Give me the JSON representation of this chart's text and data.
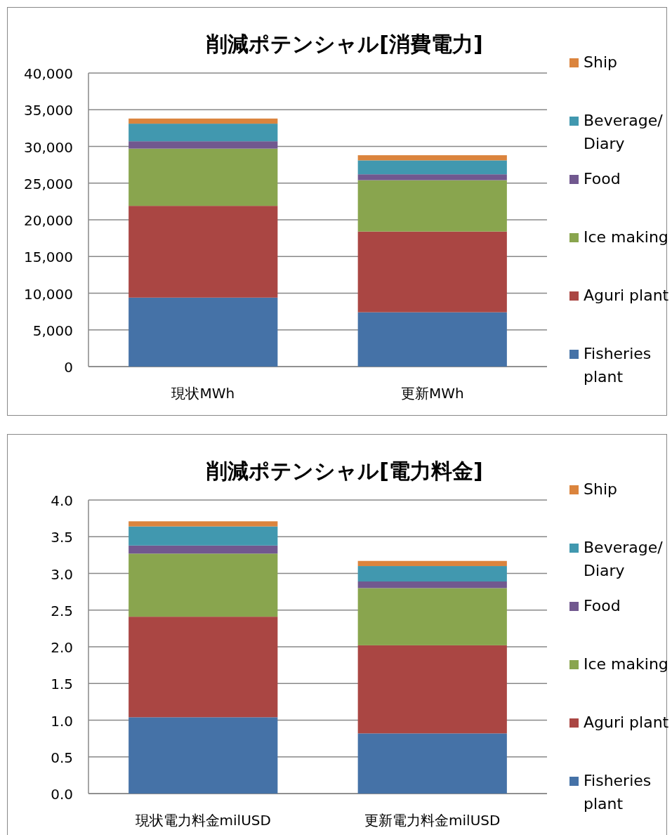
{
  "chart_data": [
    {
      "type": "bar",
      "title": "削減ポテンシャル[消費電力]",
      "categories": [
        "現状MWh",
        "更新MWh"
      ],
      "stacked": true,
      "legend": "right",
      "grid": "y",
      "ylim": [
        0,
        40000
      ],
      "yticks": [
        {
          "value": 0,
          "label": "0"
        },
        {
          "value": 5000,
          "label": "5,000"
        },
        {
          "value": 10000,
          "label": "10,000"
        },
        {
          "value": 15000,
          "label": "15,000"
        },
        {
          "value": 20000,
          "label": "20,000"
        },
        {
          "value": 25000,
          "label": "25,000"
        },
        {
          "value": 30000,
          "label": "30,000"
        },
        {
          "value": 35000,
          "label": "35,000"
        },
        {
          "value": 40000,
          "label": "40,000"
        }
      ],
      "series": [
        {
          "name": "Fisheries plant",
          "color": "#4572a7",
          "values": [
            9400,
            7400
          ]
        },
        {
          "name": "Aguri plant",
          "color": "#aa4643",
          "values": [
            12500,
            11000
          ]
        },
        {
          "name": "Ice making",
          "color": "#89a54e",
          "values": [
            7800,
            7000
          ]
        },
        {
          "name": "Food",
          "color": "#71588f",
          "values": [
            1000,
            800
          ]
        },
        {
          "name": "Beverage/ Diary",
          "color": "#4198af",
          "values": [
            2400,
            1900
          ]
        },
        {
          "name": "Ship",
          "color": "#db843d",
          "values": [
            700,
            700
          ]
        }
      ]
    },
    {
      "type": "bar",
      "title": "削減ポテンシャル[電力料金]",
      "categories": [
        "現状電力料金milUSD",
        "更新電力料金milUSD"
      ],
      "stacked": true,
      "legend": "right",
      "grid": "y",
      "ylim": [
        0,
        4.0
      ],
      "yticks": [
        {
          "value": 0,
          "label": "0.0"
        },
        {
          "value": 0.5,
          "label": "0.5"
        },
        {
          "value": 1,
          "label": "1.0"
        },
        {
          "value": 1.5,
          "label": "1.5"
        },
        {
          "value": 2,
          "label": "2.0"
        },
        {
          "value": 2.5,
          "label": "2.5"
        },
        {
          "value": 3,
          "label": "3.0"
        },
        {
          "value": 3.5,
          "label": "3.5"
        },
        {
          "value": 4,
          "label": "4.0"
        }
      ],
      "series": [
        {
          "name": "Fisheries plant",
          "color": "#4572a7",
          "values": [
            1.04,
            0.82
          ]
        },
        {
          "name": "Aguri plant",
          "color": "#aa4643",
          "values": [
            1.37,
            1.2
          ]
        },
        {
          "name": "Ice making",
          "color": "#89a54e",
          "values": [
            0.86,
            0.78
          ]
        },
        {
          "name": "Food",
          "color": "#71588f",
          "values": [
            0.11,
            0.09
          ]
        },
        {
          "name": "Beverage/ Diary",
          "color": "#4198af",
          "values": [
            0.26,
            0.21
          ]
        },
        {
          "name": "Ship",
          "color": "#db843d",
          "values": [
            0.07,
            0.07
          ]
        }
      ]
    }
  ]
}
